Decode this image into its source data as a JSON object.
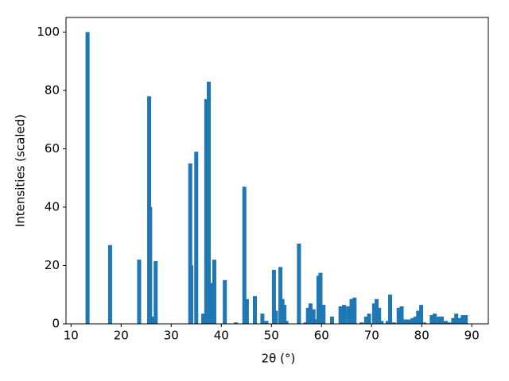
{
  "chart_data": {
    "type": "bar",
    "xlabel": "2θ (°)",
    "ylabel": "Intensities (scaled)",
    "x": [
      13.3,
      17.8,
      23.6,
      25.6,
      25.8,
      26.4,
      26.9,
      33.8,
      34.0,
      35.0,
      36.4,
      37.0,
      37.5,
      38.0,
      38.6,
      40.7,
      42.9,
      44.6,
      45.1,
      46.7,
      48.2,
      49.0,
      50.5,
      50.9,
      51.8,
      52.2,
      52.6,
      53.0,
      55.5,
      56.8,
      57.3,
      57.8,
      58.4,
      58.9,
      59.4,
      59.8,
      60.4,
      62.1,
      63.8,
      64.5,
      65.3,
      66.0,
      66.6,
      68.0,
      68.9,
      69.5,
      70.5,
      71.0,
      71.5,
      72.0,
      73.2,
      73.7,
      74.5,
      75.4,
      76.0,
      76.8,
      77.5,
      78.2,
      78.8,
      79.3,
      79.9,
      80.5,
      82.0,
      82.6,
      83.4,
      84.0,
      84.8,
      85.5,
      86.3,
      86.9,
      87.5,
      88.2,
      88.8
    ],
    "values": [
      100,
      27,
      22,
      78,
      40,
      2.5,
      21.5,
      55,
      20,
      59,
      3.5,
      77,
      83,
      14,
      22,
      15,
      0.5,
      47,
      8.5,
      9.5,
      3.5,
      1,
      18.5,
      4.5,
      19.5,
      8.5,
      6.5,
      1,
      27.5,
      0.5,
      5.5,
      7,
      5,
      1.5,
      16.5,
      17.5,
      6.5,
      2.5,
      6,
      6.5,
      6,
      8.5,
      9,
      0.5,
      2.5,
      3.5,
      7,
      8.5,
      5.5,
      1,
      1,
      10,
      0.5,
      5.5,
      6,
      1.5,
      1.5,
      2,
      2.5,
      4.5,
      6.5,
      0.5,
      3,
      3.5,
      2.5,
      2.5,
      1,
      0.5,
      2,
      3.5,
      2,
      3,
      3
    ],
    "color": "#1f77b4",
    "xlim": [
      9,
      93.3
    ],
    "xticks": [
      10,
      20,
      30,
      40,
      50,
      60,
      70,
      80,
      90
    ],
    "ylim": [
      0,
      105
    ],
    "yticks": [
      0,
      20,
      40,
      60,
      80,
      100
    ]
  }
}
